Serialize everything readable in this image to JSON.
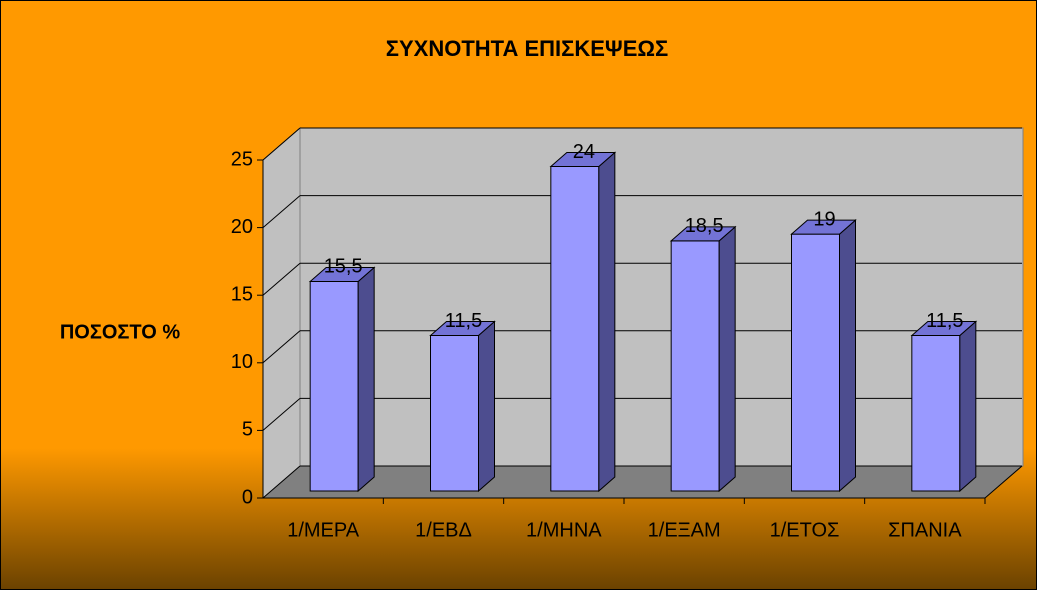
{
  "chart_data": {
    "type": "bar3d",
    "title": "ΣΥΧΝΟΤΗΤΑ ΕΠΙΣΚΕΨΕΩΣ",
    "y_label": "ΠΟΣΟΣΤΟ %",
    "categories": [
      "1/ΜΕΡΑ",
      "1/ΕΒΔ",
      "1/ΜΗΝΑ",
      "1/ΕΞΑΜ",
      "1/ΕΤΟΣ",
      "ΣΠΑΝΙΑ"
    ],
    "values": [
      15.5,
      11.5,
      24,
      18.5,
      19,
      11.5
    ],
    "value_labels": [
      "15,5",
      "11,5",
      "24",
      "18,5",
      "19",
      "11,5"
    ],
    "color": "#9999ff",
    "ylim": [
      0,
      25
    ],
    "yticks": [
      0,
      5,
      10,
      15,
      20,
      25
    ],
    "grid": true
  }
}
